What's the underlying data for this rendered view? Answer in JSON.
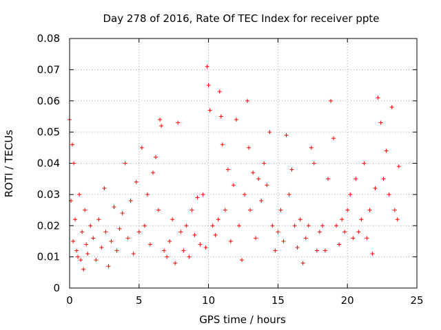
{
  "chart_data": {
    "type": "scatter",
    "title": "Day 278 of 2016, Rate Of TEC Index for receiver ppte",
    "xlabel": "GPS time / hours",
    "ylabel": "ROTI / TECUs",
    "xlim": [
      0,
      25
    ],
    "ylim": [
      0,
      0.08
    ],
    "xticks": [
      "0",
      "5",
      "10",
      "15",
      "20",
      "25"
    ],
    "yticks": [
      "0",
      "0.01",
      "0.02",
      "0.03",
      "0.04",
      "0.05",
      "0.06",
      "0.07",
      "0.08"
    ],
    "xtick_values": [
      0,
      5,
      10,
      15,
      20,
      25
    ],
    "ytick_values": [
      0,
      0.01,
      0.02,
      0.03,
      0.04,
      0.05,
      0.06,
      0.07,
      0.08
    ],
    "grid": true,
    "marker": "+",
    "marker_color": "#ff0000",
    "series": [
      {
        "name": "ROTI",
        "x": [
          0.0,
          0.1,
          0.2,
          0.25,
          0.3,
          0.4,
          0.5,
          0.6,
          0.7,
          0.8,
          0.9,
          1.0,
          1.1,
          1.2,
          1.3,
          1.5,
          1.7,
          1.9,
          2.1,
          2.3,
          2.5,
          2.6,
          2.8,
          3.0,
          3.2,
          3.4,
          3.6,
          3.8,
          4.0,
          4.2,
          4.4,
          4.6,
          4.8,
          5.0,
          5.2,
          5.4,
          5.6,
          5.8,
          6.0,
          6.2,
          6.4,
          6.5,
          6.6,
          6.8,
          7.0,
          7.2,
          7.4,
          7.6,
          7.8,
          8.0,
          8.2,
          8.4,
          8.6,
          8.8,
          9.0,
          9.2,
          9.4,
          9.6,
          9.8,
          9.9,
          10.0,
          10.1,
          10.3,
          10.5,
          10.7,
          10.8,
          10.9,
          11.0,
          11.2,
          11.4,
          11.6,
          11.8,
          12.0,
          12.2,
          12.4,
          12.6,
          12.8,
          12.9,
          13.0,
          13.2,
          13.4,
          13.6,
          13.8,
          14.0,
          14.2,
          14.4,
          14.6,
          14.8,
          15.0,
          15.2,
          15.4,
          15.6,
          15.8,
          16.0,
          16.2,
          16.4,
          16.6,
          16.8,
          17.0,
          17.2,
          17.4,
          17.6,
          17.8,
          18.0,
          18.2,
          18.4,
          18.6,
          18.8,
          19.0,
          19.2,
          19.4,
          19.6,
          19.8,
          20.0,
          20.2,
          20.4,
          20.6,
          20.8,
          21.0,
          21.2,
          21.4,
          21.6,
          21.8,
          22.0,
          22.2,
          22.4,
          22.6,
          22.8,
          23.0,
          23.2,
          23.4,
          23.6,
          23.7
        ],
        "y": [
          0.054,
          0.028,
          0.046,
          0.015,
          0.04,
          0.022,
          0.012,
          0.01,
          0.03,
          0.009,
          0.018,
          0.006,
          0.025,
          0.014,
          0.011,
          0.02,
          0.016,
          0.009,
          0.022,
          0.013,
          0.032,
          0.018,
          0.007,
          0.015,
          0.026,
          0.012,
          0.019,
          0.024,
          0.04,
          0.016,
          0.028,
          0.011,
          0.034,
          0.018,
          0.045,
          0.02,
          0.03,
          0.014,
          0.037,
          0.042,
          0.025,
          0.054,
          0.052,
          0.012,
          0.01,
          0.015,
          0.022,
          0.008,
          0.053,
          0.018,
          0.012,
          0.02,
          0.01,
          0.025,
          0.017,
          0.029,
          0.014,
          0.03,
          0.013,
          0.071,
          0.065,
          0.057,
          0.02,
          0.017,
          0.022,
          0.063,
          0.055,
          0.046,
          0.025,
          0.038,
          0.015,
          0.033,
          0.054,
          0.02,
          0.009,
          0.03,
          0.06,
          0.045,
          0.025,
          0.037,
          0.016,
          0.035,
          0.028,
          0.04,
          0.033,
          0.05,
          0.02,
          0.012,
          0.018,
          0.025,
          0.015,
          0.049,
          0.03,
          0.038,
          0.02,
          0.013,
          0.022,
          0.008,
          0.016,
          0.02,
          0.045,
          0.04,
          0.012,
          0.018,
          0.02,
          0.012,
          0.035,
          0.06,
          0.048,
          0.02,
          0.014,
          0.022,
          0.018,
          0.025,
          0.03,
          0.016,
          0.035,
          0.018,
          0.022,
          0.04,
          0.016,
          0.025,
          0.011,
          0.032,
          0.061,
          0.053,
          0.035,
          0.044,
          0.03,
          0.058,
          0.025,
          0.022,
          0.039
        ]
      }
    ]
  }
}
